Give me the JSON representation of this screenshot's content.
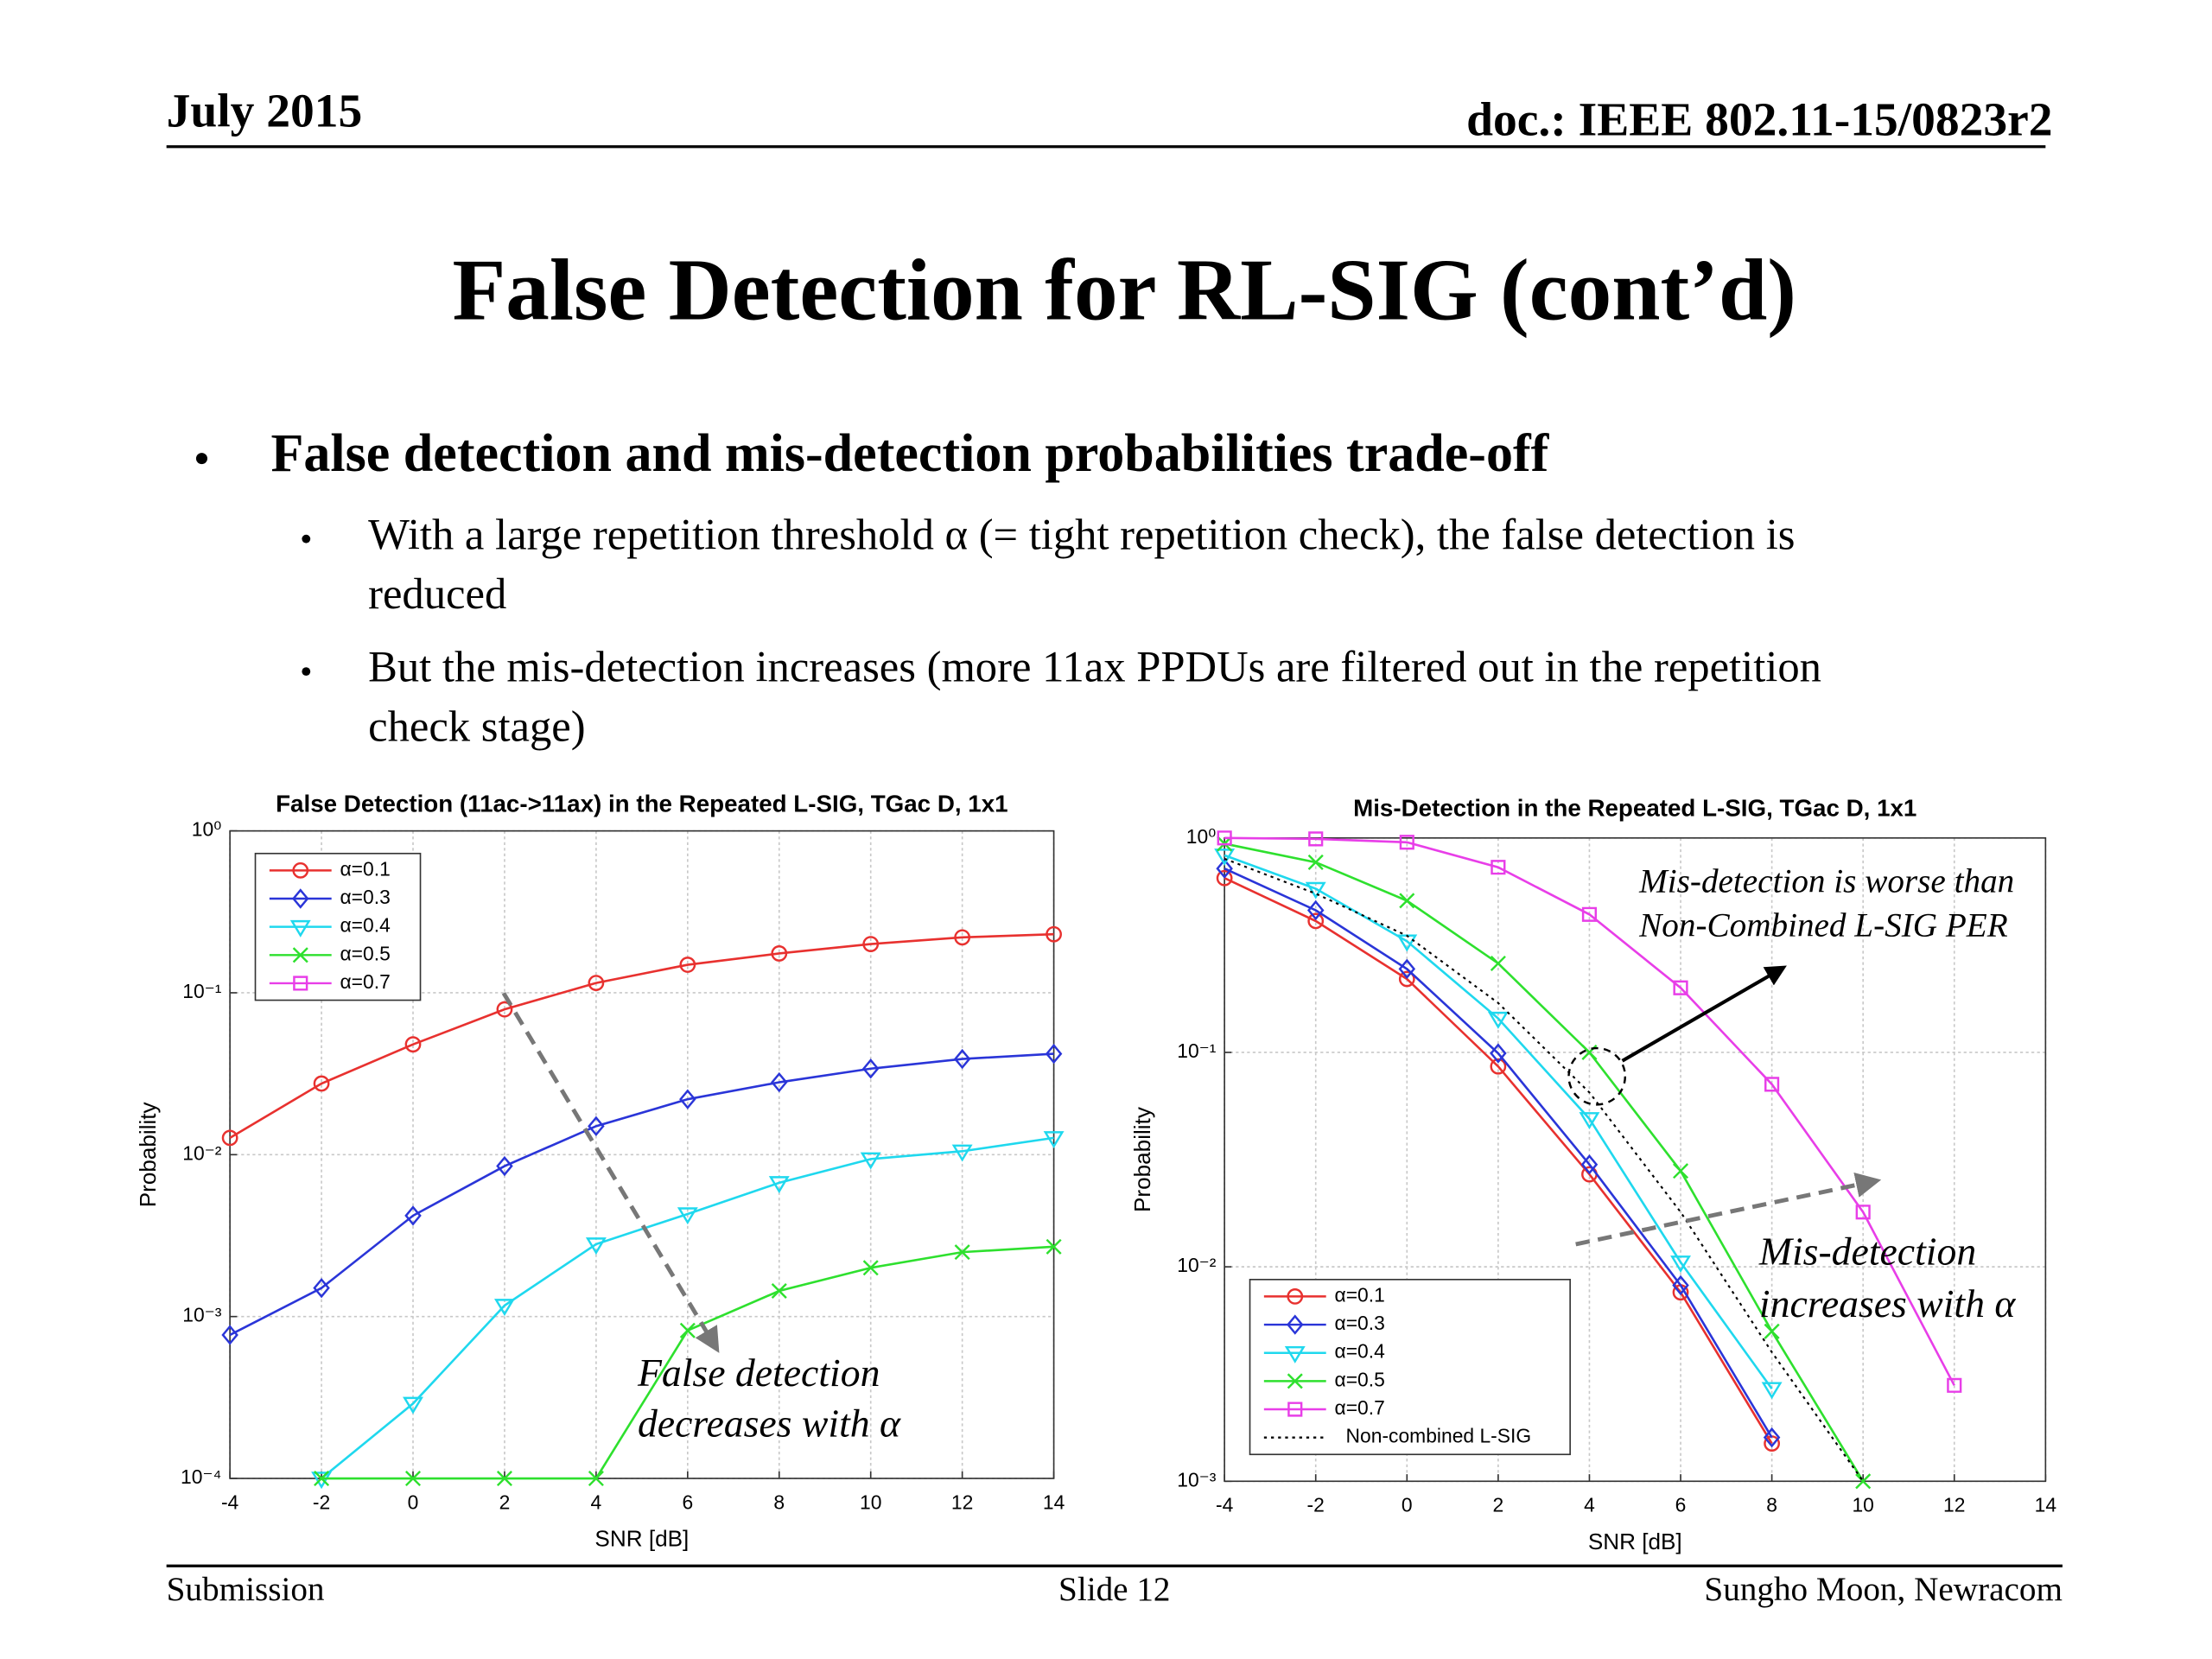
{
  "header": {
    "date": "July 2015",
    "doc": "doc.: IEEE 802.11-15/0823r2"
  },
  "title": "False Detection for RL-SIG (cont’d)",
  "bullets": [
    {
      "text": "False detection and mis-detection probabilities trade-off",
      "sub": [
        [
          "With a large repetition threshold α (= tight repetition check), the false detection is",
          "reduced"
        ],
        [
          "But the mis-detection increases (more 11ax PPDUs are filtered out in the repetition",
          "check stage)"
        ]
      ]
    }
  ],
  "chart_data": [
    {
      "type": "line",
      "title": "False Detection (11ac->11ax) in the Repeated L-SIG, TGac D, 1x1",
      "xlabel": "SNR [dB]",
      "ylabel": "Probability",
      "yscale": "log",
      "grid": true,
      "legend": "upper left",
      "x": [
        -4,
        -2,
        0,
        2,
        4,
        6,
        8,
        10,
        12,
        14
      ],
      "xlim": [
        -4,
        14
      ],
      "xticks": [
        -4,
        -2,
        0,
        2,
        4,
        6,
        8,
        10,
        12,
        14
      ],
      "ylim": [
        0.0001,
        1
      ],
      "yticks": [
        {
          "value": 0.0001,
          "label": "10⁻⁴"
        },
        {
          "value": 0.001,
          "label": "10⁻³"
        },
        {
          "value": 0.01,
          "label": "10⁻²"
        },
        {
          "value": 0.1,
          "label": "10⁻¹"
        },
        {
          "value": 1,
          "label": "10⁰"
        }
      ],
      "series": [
        {
          "name": "α=0.1",
          "color": "#e8312f",
          "marker": "o",
          "values": [
            0.0127,
            0.0275,
            0.048,
            0.079,
            0.115,
            0.149,
            0.175,
            0.2,
            0.22,
            0.23
          ]
        },
        {
          "name": "α=0.3",
          "color": "#2a35d8",
          "marker": "d",
          "values": [
            0.00077,
            0.0015,
            0.0042,
            0.0085,
            0.015,
            0.022,
            0.028,
            0.034,
            0.039,
            0.042
          ]
        },
        {
          "name": "α=0.4",
          "color": "#1fd8ee",
          "marker": "v",
          "values": [
            null,
            0.0001,
            0.00029,
            0.00117,
            0.0028,
            0.0043,
            0.0067,
            0.0094,
            0.0105,
            0.0127
          ]
        },
        {
          "name": "α=0.5",
          "color": "#2ee02e",
          "marker": "x",
          "values": [
            null,
            0.0001,
            0.0001,
            0.0001,
            0.0001,
            0.00082,
            0.00144,
            0.002,
            0.0025,
            0.0027
          ]
        },
        {
          "name": "α=0.7",
          "color": "#e83ee8",
          "marker": "s",
          "values": [
            null,
            null,
            null,
            null,
            null,
            null,
            null,
            null,
            null,
            null
          ]
        }
      ],
      "annotations": [
        {
          "lines": [
            "False detection",
            "decreases with α"
          ]
        }
      ]
    },
    {
      "type": "line",
      "title": "Mis-Detection in the Repeated L-SIG, TGac D, 1x1",
      "xlabel": "SNR [dB]",
      "ylabel": "Probability",
      "yscale": "log",
      "grid": true,
      "legend": "lower left",
      "x": [
        -4,
        -2,
        0,
        2,
        4,
        6,
        8,
        10,
        12,
        14
      ],
      "xlim": [
        -4,
        14
      ],
      "xticks": [
        -4,
        -2,
        0,
        2,
        4,
        6,
        8,
        10,
        12,
        14
      ],
      "ylim": [
        0.001,
        1
      ],
      "yticks": [
        {
          "value": 0.001,
          "label": "10⁻³"
        },
        {
          "value": 0.01,
          "label": "10⁻²"
        },
        {
          "value": 0.1,
          "label": "10⁻¹"
        },
        {
          "value": 1,
          "label": "10⁰"
        }
      ],
      "series": [
        {
          "name": "α=0.1",
          "color": "#e8312f",
          "marker": "o",
          "values": [
            0.65,
            0.41,
            0.22,
            0.086,
            0.027,
            0.0076,
            0.0015,
            null,
            null,
            null
          ]
        },
        {
          "name": "α=0.3",
          "color": "#2a35d8",
          "marker": "d",
          "values": [
            0.72,
            0.46,
            0.245,
            0.099,
            0.03,
            0.0082,
            0.0016,
            null,
            null,
            null
          ]
        },
        {
          "name": "α=0.4",
          "color": "#1fd8ee",
          "marker": "v",
          "values": [
            0.83,
            0.58,
            0.33,
            0.144,
            0.049,
            0.0105,
            0.0027,
            null,
            null,
            null
          ]
        },
        {
          "name": "α=0.5",
          "color": "#2ee02e",
          "marker": "x",
          "values": [
            0.94,
            0.77,
            0.51,
            0.26,
            0.1,
            0.028,
            0.005,
            0.001,
            null,
            null
          ]
        },
        {
          "name": "α=0.7",
          "color": "#e83ee8",
          "marker": "s",
          "values": [
            1.0,
            0.99,
            0.955,
            0.73,
            0.44,
            0.2,
            0.071,
            0.018,
            0.0028,
            null
          ]
        },
        {
          "name": "Non-combined L-SIG",
          "color": "#000000",
          "marker": "none",
          "linestyle": "dotted",
          "values": [
            0.8,
            0.55,
            0.35,
            0.17,
            0.065,
            0.018,
            0.004,
            0.001,
            null,
            null
          ]
        }
      ],
      "annotations": [
        {
          "lines": [
            "Mis-detection is worse than",
            "Non-Combined L-SIG PER"
          ]
        },
        {
          "lines": [
            "Mis-detection",
            "increases with α"
          ]
        }
      ]
    }
  ],
  "footer": {
    "left": "Submission",
    "center": "Slide 12",
    "right": "Sungho Moon, Newracom"
  }
}
